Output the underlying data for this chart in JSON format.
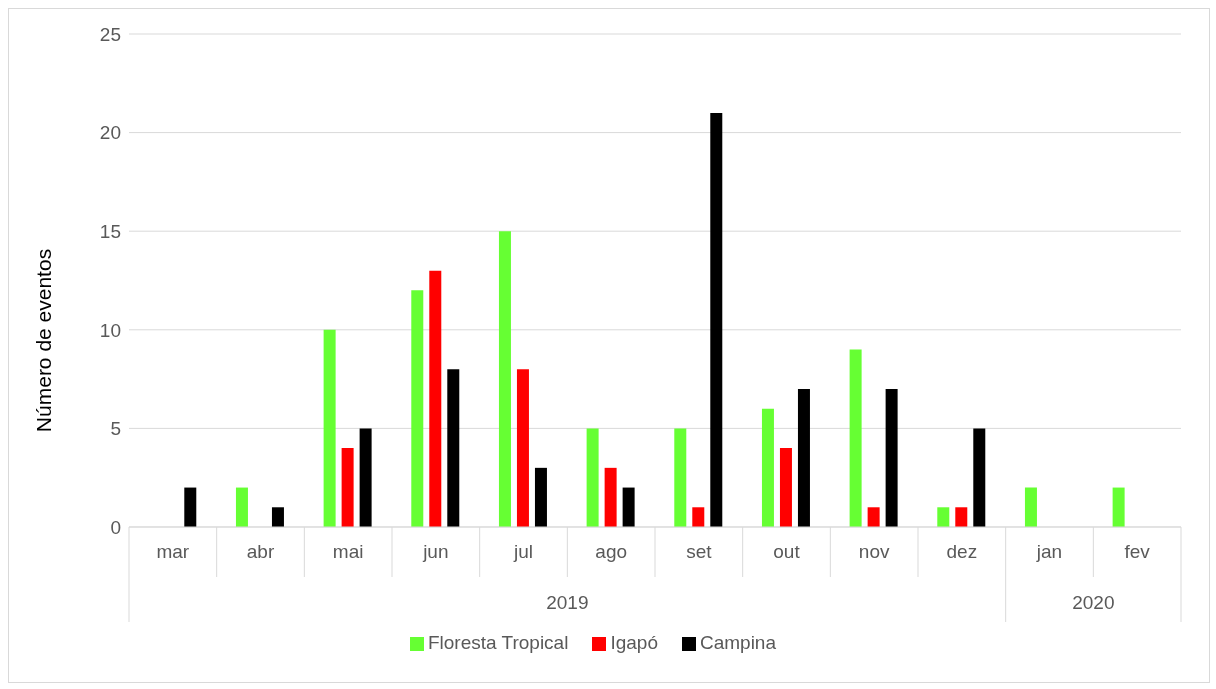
{
  "chart_data": {
    "type": "bar",
    "ylabel": "Número de eventos",
    "categories": [
      "mar",
      "abr",
      "mai",
      "jun",
      "jul",
      "ago",
      "set",
      "out",
      "nov",
      "dez",
      "jan",
      "fev"
    ],
    "series": [
      {
        "name": "Floresta Tropical",
        "color": "#66ff33",
        "values": [
          0,
          2,
          10,
          12,
          15,
          5,
          5,
          6,
          9,
          1,
          2,
          2
        ]
      },
      {
        "name": "Igapó",
        "color": "#ff0000",
        "values": [
          0,
          0,
          4,
          13,
          8,
          3,
          1,
          4,
          1,
          1,
          0,
          0
        ]
      },
      {
        "name": "Campina",
        "color": "#000000",
        "values": [
          2,
          1,
          5,
          8,
          3,
          2,
          21,
          7,
          7,
          5,
          0,
          0
        ]
      }
    ],
    "annotations": [
      "2019",
      "2020"
    ],
    "ylim": [
      0,
      25
    ],
    "yticks": [
      0,
      5,
      10,
      15,
      20,
      25
    ],
    "grid": "y",
    "legend": "bottom"
  }
}
